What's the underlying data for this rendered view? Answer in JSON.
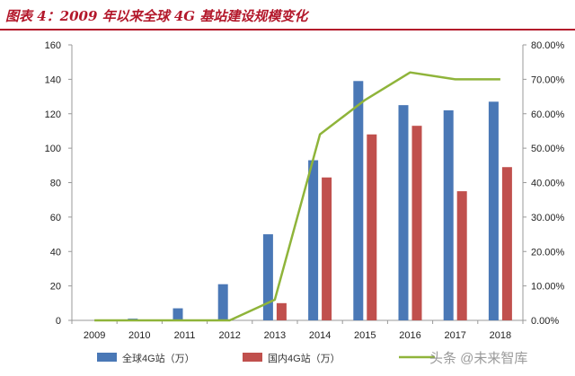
{
  "header": {
    "title": "图表 4：2009 年以来全球 4G 基站建设规模变化"
  },
  "watermark": "头条 @未来智库",
  "chart_data": {
    "type": "bar",
    "title": "",
    "xlabel": "",
    "ylabel": "",
    "categories": [
      "2009",
      "2010",
      "2011",
      "2012",
      "2013",
      "2014",
      "2015",
      "2016",
      "2017",
      "2018"
    ],
    "ylim": [
      0,
      160
    ],
    "y_ticks": [
      0,
      20,
      40,
      60,
      80,
      100,
      120,
      140,
      160
    ],
    "y2lim": [
      0,
      0.8
    ],
    "y2_ticks": [
      "0.00%",
      "10.00%",
      "20.00%",
      "30.00%",
      "40.00%",
      "50.00%",
      "60.00%",
      "70.00%",
      "80.00%"
    ],
    "grid": false,
    "legend_position": "bottom",
    "series": [
      {
        "name": "全球4G站（万）",
        "type": "bar",
        "axis": "left",
        "color": "#4a78b6",
        "values": [
          0,
          1,
          7,
          21,
          50,
          93,
          139,
          125,
          122,
          127
        ]
      },
      {
        "name": "国内4G站（万）",
        "type": "bar",
        "axis": "left",
        "color": "#c0504d",
        "values": [
          0,
          0,
          0,
          0,
          10,
          83,
          108,
          113,
          75,
          89
        ]
      },
      {
        "name": "",
        "type": "line",
        "axis": "right",
        "color": "#8fb43a",
        "values": [
          0,
          0,
          0,
          0,
          0.06,
          0.54,
          0.64,
          0.72,
          0.7,
          0.7
        ]
      }
    ]
  }
}
